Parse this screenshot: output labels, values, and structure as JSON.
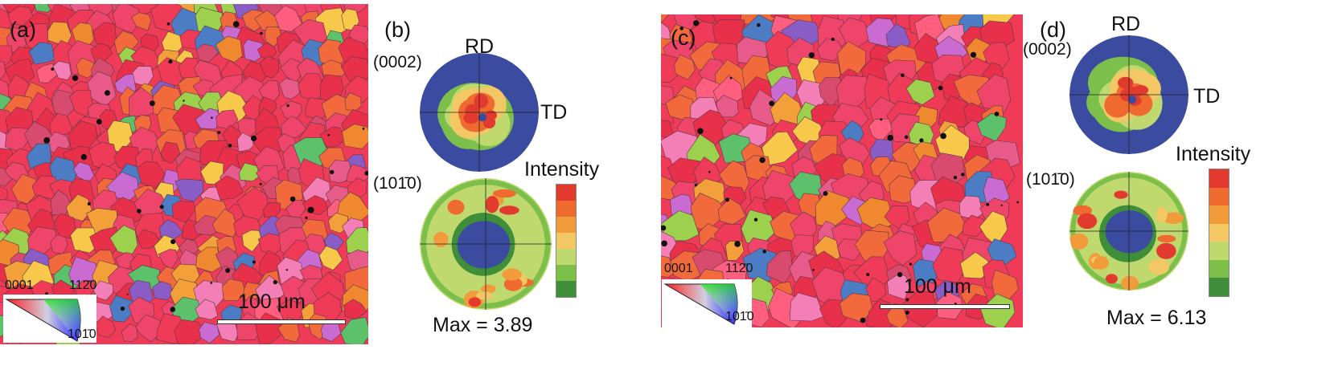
{
  "panels": {
    "a": {
      "label": "(a)",
      "scale_bar": "100 μm",
      "key": {
        "corner_0001": "0001",
        "corner_1120": "112̄0",
        "corner_1010": "101̄0"
      }
    },
    "b": {
      "label": "(b)",
      "plane_top": "(0002)",
      "plane_bottom": "(101̄0)",
      "axis_rd": "RD",
      "axis_td": "TD",
      "intensity_label": "Intensity",
      "max_label": "Max = 3.89"
    },
    "c": {
      "label": "(c)",
      "scale_bar": "100 μm",
      "key": {
        "corner_0001": "0001",
        "corner_1120": "112̄0",
        "corner_1010": "101̄0"
      }
    },
    "d": {
      "label": "(d)",
      "plane_top": "(0002)",
      "plane_bottom": "(101̄0)",
      "axis_rd": "RD",
      "axis_td": "TD",
      "intensity_label": "Intensity",
      "max_label": "Max = 6.13"
    }
  },
  "colors": {
    "pole_background": "#3a4ba0",
    "intensity_scale": [
      "#e23a2e",
      "#ef6a2f",
      "#f29b3a",
      "#f4c765",
      "#bfd96f",
      "#7cbf4a",
      "#3f8f3a"
    ],
    "ebsd_palette": [
      "#ef3b57",
      "#f0456b",
      "#e8304a",
      "#f26a3b",
      "#f4a03a",
      "#f7c84a",
      "#9dd04c",
      "#5cc16a",
      "#4c7dc4",
      "#8a5cc6",
      "#c96bd0",
      "#f47fb7",
      "#e85a8a",
      "#f0882f",
      "#d84b6e",
      "#ff5e7e"
    ]
  }
}
